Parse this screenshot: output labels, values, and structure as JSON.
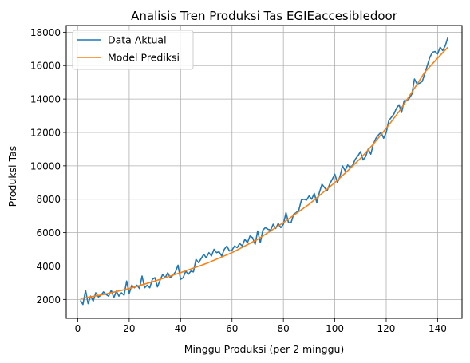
{
  "chart_data": {
    "type": "line",
    "title": "Analisis Tren Produksi Tas EGIEaccesibledoor",
    "xlabel": "Minggu Produksi (per 2 minggu)",
    "ylabel": "Produksi Tas",
    "xlim": [
      -4.5,
      149.5
    ],
    "ylim": [
      870,
      18400
    ],
    "xticks": [
      0,
      20,
      40,
      60,
      80,
      100,
      120,
      140
    ],
    "yticks": [
      2000,
      4000,
      6000,
      8000,
      10000,
      12000,
      14000,
      16000,
      18000
    ],
    "grid": true,
    "legend_position": "upper left",
    "series": [
      {
        "name": "Data Aktual",
        "color": "#1f77b4",
        "x": [
          1,
          2,
          3,
          4,
          5,
          6,
          7,
          8,
          9,
          10,
          11,
          12,
          13,
          14,
          15,
          16,
          17,
          18,
          19,
          20,
          21,
          22,
          23,
          24,
          25,
          26,
          27,
          28,
          29,
          30,
          31,
          32,
          33,
          34,
          35,
          36,
          37,
          38,
          39,
          40,
          41,
          42,
          43,
          44,
          45,
          46,
          47,
          48,
          49,
          50,
          51,
          52,
          53,
          54,
          55,
          56,
          57,
          58,
          59,
          60,
          61,
          62,
          63,
          64,
          65,
          66,
          67,
          68,
          69,
          70,
          71,
          72,
          73,
          74,
          75,
          76,
          77,
          78,
          79,
          80,
          81,
          82,
          83,
          84,
          85,
          86,
          87,
          88,
          89,
          90,
          91,
          92,
          93,
          94,
          95,
          96,
          97,
          98,
          99,
          100,
          101,
          102,
          103,
          104,
          105,
          106,
          107,
          108,
          109,
          110,
          111,
          112,
          113,
          114,
          115,
          116,
          117,
          118,
          119,
          120,
          121,
          122,
          123,
          124,
          125,
          126,
          127,
          128,
          129,
          130,
          131,
          132,
          133,
          134,
          135,
          136,
          137,
          138,
          139,
          140,
          141,
          142,
          143,
          144
        ],
        "y": [
          1950,
          1700,
          2550,
          1750,
          2200,
          1900,
          2400,
          2150,
          2250,
          2450,
          2300,
          2200,
          2550,
          2100,
          2500,
          2200,
          2400,
          2250,
          3100,
          2350,
          2850,
          2700,
          2850,
          2650,
          3400,
          2700,
          2850,
          2700,
          3200,
          3300,
          2750,
          3150,
          3500,
          3300,
          3600,
          3300,
          3450,
          3650,
          4050,
          3200,
          3300,
          3700,
          3500,
          3700,
          3650,
          4400,
          4200,
          4450,
          4700,
          4500,
          4800,
          4600,
          5000,
          4800,
          4850,
          4600,
          5000,
          5200,
          4900,
          4950,
          5200,
          5100,
          5350,
          5200,
          5600,
          5400,
          5800,
          5700,
          5300,
          6100,
          5400,
          6150,
          6300,
          6200,
          6150,
          6500,
          6250,
          6550,
          6300,
          6500,
          7200,
          6600,
          6600,
          7100,
          7200,
          7350,
          7950,
          8000,
          7950,
          8200,
          8000,
          8350,
          7800,
          8400,
          8900,
          8700,
          8500,
          8900,
          9200,
          9500,
          9000,
          9350,
          10000,
          9700,
          10050,
          9900,
          10050,
          10400,
          10600,
          10850,
          10350,
          10550,
          11000,
          10700,
          11300,
          11650,
          11850,
          12000,
          11650,
          12000,
          12700,
          12900,
          13100,
          13450,
          13650,
          13200,
          13900,
          13900,
          14050,
          14300,
          15200,
          14900,
          14950,
          15050,
          15500,
          16000,
          16500,
          16800,
          16850,
          16700,
          17100,
          16900,
          17200,
          17700
        ]
      },
      {
        "name": "Model Prediksi",
        "color": "#ff7f0e",
        "x": [
          1,
          10,
          20,
          30,
          40,
          50,
          60,
          70,
          80,
          90,
          100,
          105,
          110,
          115,
          120,
          125,
          130,
          135,
          140,
          144
        ],
        "y": [
          2050,
          2300,
          2650,
          3100,
          3600,
          4150,
          4800,
          5600,
          6600,
          7700,
          9000,
          9700,
          10450,
          11300,
          12250,
          13250,
          14400,
          15600,
          16450,
          17100
        ]
      }
    ]
  }
}
